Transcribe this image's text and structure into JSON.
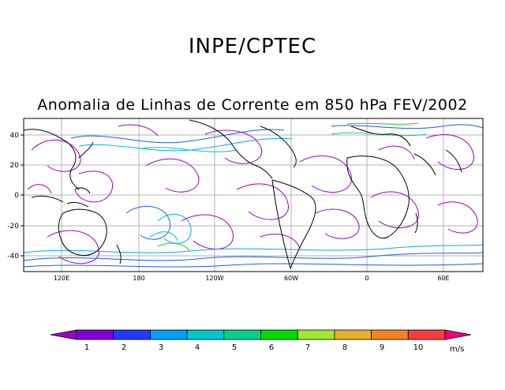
{
  "header": {
    "agency": "INPE/CPTEC",
    "subtitle": "Anomalia de Linhas de Corrente em 850 hPa FEV/2002"
  },
  "map": {
    "lat_ticks": [
      "40",
      "20",
      "0",
      "-20",
      "-40"
    ],
    "lon_ticks": [
      "120E",
      "180",
      "120W",
      "60W",
      "0",
      "60E"
    ]
  },
  "colorbar": {
    "labels": [
      "1",
      "2",
      "3",
      "4",
      "5",
      "6",
      "7",
      "8",
      "9",
      "10"
    ],
    "unit": "m/s",
    "colors": [
      "#a000c8",
      "#8200dc",
      "#1e3cff",
      "#00a0ff",
      "#00c8c8",
      "#00d28c",
      "#00dc00",
      "#a0e632",
      "#e6af2d",
      "#f08228",
      "#fa3c3c",
      "#f00082"
    ]
  }
}
